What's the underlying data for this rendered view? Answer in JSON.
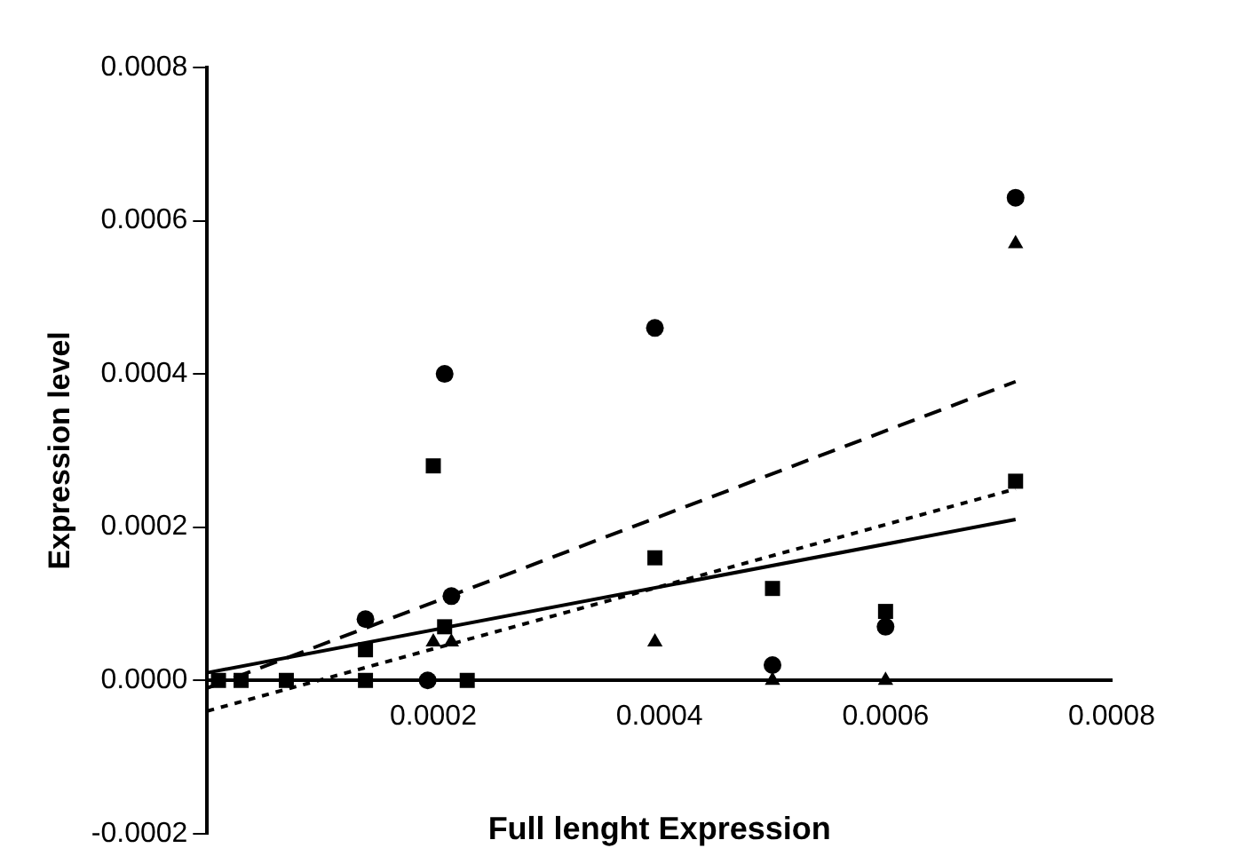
{
  "chart_data": {
    "type": "scatter",
    "xlabel": "Full lenght Expression",
    "ylabel": "Expression level",
    "xlim": [
      0,
      0.0008
    ],
    "xticks": [
      0.0002,
      0.0004,
      0.0006,
      0.0008
    ],
    "ylim": [
      -0.0002,
      0.0008
    ],
    "yticks": [
      -0.0002,
      {
        "value": 0,
        "label": "0.0000"
      },
      0.0002,
      0.0004,
      0.0006,
      0.0008
    ],
    "grid": false,
    "legend": false,
    "series": [
      {
        "marker": "circle",
        "color": "#000000",
        "x": [
          0.00014,
          0.00021,
          0.000216,
          0.000195,
          0.000396,
          0.0005,
          0.0006,
          0.000715
        ],
        "values": [
          8e-05,
          0.0004,
          0.00011,
          0,
          0.00046,
          2e-05,
          7e-05,
          0.00063
        ]
      },
      {
        "marker": "square",
        "color": "#000000",
        "x": [
          1e-05,
          3e-05,
          7e-05,
          0.00014,
          0.00014,
          0.0002,
          0.00021,
          0.00023,
          0.000396,
          0.0005,
          0.0006,
          0.000715
        ],
        "values": [
          0,
          0,
          0,
          0,
          4e-05,
          0.00028,
          7e-05,
          0,
          0.00016,
          0.00012,
          9e-05,
          0.00026
        ]
      },
      {
        "marker": "triangle",
        "color": "#000000",
        "x": [
          0.0002,
          0.000216,
          0.000396,
          0.0005,
          0.0006,
          0.000715
        ],
        "values": [
          5e-05,
          5e-05,
          5e-05,
          0,
          0,
          0.00057
        ]
      },
      {
        "type": "line",
        "line_style": "dashed",
        "color": "#000000",
        "x": [
          0,
          0.000715
        ],
        "values": [
          -1e-05,
          0.00039
        ]
      },
      {
        "type": "line",
        "line_style": "dotted",
        "color": "#000000",
        "x": [
          0,
          0.000715
        ],
        "values": [
          -4e-05,
          0.00025
        ]
      },
      {
        "type": "line",
        "line_style": "solid",
        "color": "#000000",
        "x": [
          0,
          0.000715
        ],
        "values": [
          1e-05,
          0.00021
        ]
      }
    ]
  }
}
